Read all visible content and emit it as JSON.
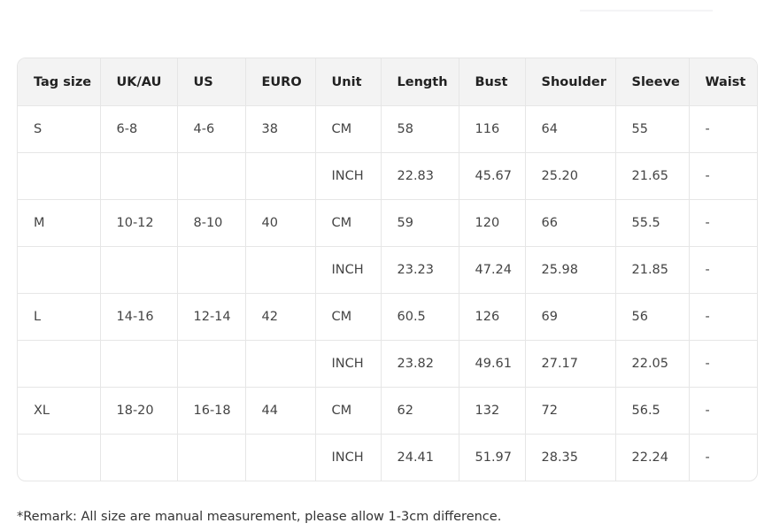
{
  "table": {
    "headers": [
      "Tag size",
      "UK/AU",
      "US",
      "EURO",
      "Unit",
      "Length",
      "Bust",
      "Shoulder",
      "Sleeve",
      "Waist"
    ],
    "rows": [
      [
        "S",
        "6-8",
        "4-6",
        "38",
        "CM",
        "58",
        "116",
        "64",
        "55",
        "-"
      ],
      [
        "",
        "",
        "",
        "",
        "INCH",
        "22.83",
        "45.67",
        "25.20",
        "21.65",
        "-"
      ],
      [
        "M",
        "10-12",
        "8-10",
        "40",
        "CM",
        "59",
        "120",
        "66",
        "55.5",
        "-"
      ],
      [
        "",
        "",
        "",
        "",
        "INCH",
        "23.23",
        "47.24",
        "25.98",
        "21.85",
        "-"
      ],
      [
        "L",
        "14-16",
        "12-14",
        "42",
        "CM",
        "60.5",
        "126",
        "69",
        "56",
        "-"
      ],
      [
        "",
        "",
        "",
        "",
        "INCH",
        "23.82",
        "49.61",
        "27.17",
        "22.05",
        "-"
      ],
      [
        "XL",
        "18-20",
        "16-18",
        "44",
        "CM",
        "62",
        "132",
        "72",
        "56.5",
        "-"
      ],
      [
        "",
        "",
        "",
        "",
        "INCH",
        "24.41",
        "51.97",
        "28.35",
        "22.24",
        "-"
      ]
    ]
  },
  "remark": "*Remark: All size are manual measurement, please allow 1-3cm difference."
}
